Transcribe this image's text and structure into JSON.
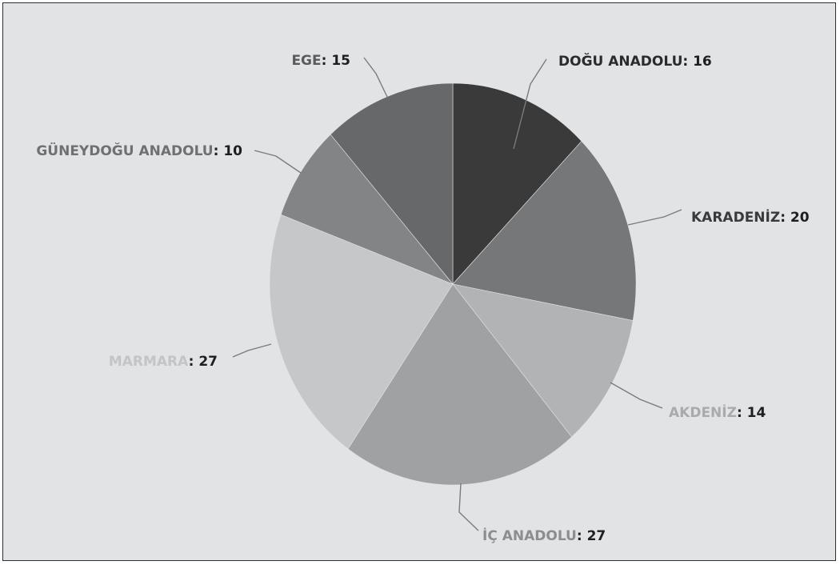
{
  "chart_data": {
    "type": "pie",
    "title": "",
    "start_angle_deg": 0,
    "direction": "clockwise",
    "slices": [
      {
        "label": "DOĞU ANADOLU",
        "value": 16,
        "color": "#3a3a3a",
        "label_color": "#2b2b2b"
      },
      {
        "label": "KARADENİZ",
        "value": 20,
        "color": "#767779",
        "label_color": "#3a3a3a"
      },
      {
        "label": "AKDENİZ",
        "value": 14,
        "color": "#b2b3b5",
        "label_color": "#a9aaac"
      },
      {
        "label": "İÇ ANADOLU",
        "value": 27,
        "color": "#a0a1a3",
        "label_color": "#8c8d8f"
      },
      {
        "label": "MARMARA",
        "value": 27,
        "color": "#c6c7c9",
        "label_color": "#c3c4c6"
      },
      {
        "label": "GÜNEYDOĞU ANADOLU",
        "value": 10,
        "color": "#838486",
        "label_color": "#6f7072"
      },
      {
        "label": "EGE",
        "value": 15,
        "color": "#67686a",
        "label_color": "#5a5b5d"
      }
    ],
    "value_color": "#1e1e1e",
    "leader_color": "#7a7b7d",
    "background": "#e2e3e5"
  }
}
